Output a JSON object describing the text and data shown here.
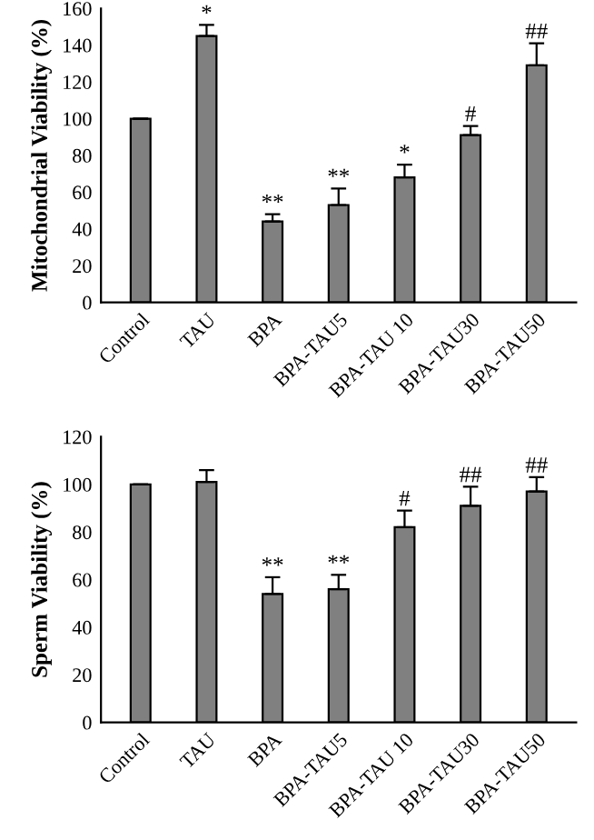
{
  "chart_data": [
    {
      "type": "bar",
      "ylabel": "Mitochondrial Viability (%)",
      "categories": [
        "Control",
        "TAU",
        "BPA",
        "BPA-TAU5",
        "BPA-TAU 10",
        "BPA-TAU30",
        "BPA-TAU50"
      ],
      "values": [
        100,
        145,
        44,
        53,
        68,
        91,
        129
      ],
      "errors": [
        null,
        6,
        4,
        9,
        7,
        5,
        12
      ],
      "color": "#808080",
      "ylim": [
        0,
        160
      ],
      "yticks": [
        0,
        20,
        40,
        60,
        80,
        100,
        120,
        140,
        160
      ],
      "grid": false,
      "legend": false,
      "annotations": [
        {
          "text": "*",
          "x": "TAU",
          "y": 151
        },
        {
          "text": "**",
          "x": "BPA",
          "y": 48
        },
        {
          "text": "**",
          "x": "BPA-TAU5",
          "y": 62
        },
        {
          "text": "*",
          "x": "BPA-TAU 10",
          "y": 75
        },
        {
          "text": "#",
          "x": "BPA-TAU30",
          "y": 96
        },
        {
          "text": "##",
          "x": "BPA-TAU50",
          "y": 141
        }
      ]
    },
    {
      "type": "bar",
      "ylabel": "Sperm Viability (%)",
      "categories": [
        "Control",
        "TAU",
        "BPA",
        "BPA-TAU5",
        "BPA-TAU 10",
        "BPA-TAU30",
        "BPA-TAU50"
      ],
      "values": [
        100,
        101,
        54,
        56,
        82,
        91,
        97
      ],
      "errors": [
        null,
        5,
        7,
        6,
        7,
        8,
        6
      ],
      "color": "#808080",
      "ylim": [
        0,
        120
      ],
      "yticks": [
        0,
        20,
        40,
        60,
        80,
        100,
        120
      ],
      "grid": false,
      "legend": false,
      "annotations": [
        {
          "text": "**",
          "x": "BPA",
          "y": 61
        },
        {
          "text": "**",
          "x": "BPA-TAU5",
          "y": 62
        },
        {
          "text": "#",
          "x": "BPA-TAU 10",
          "y": 89
        },
        {
          "text": "##",
          "x": "BPA-TAU30",
          "y": 99
        },
        {
          "text": "##",
          "x": "BPA-TAU50",
          "y": 103
        }
      ]
    }
  ]
}
